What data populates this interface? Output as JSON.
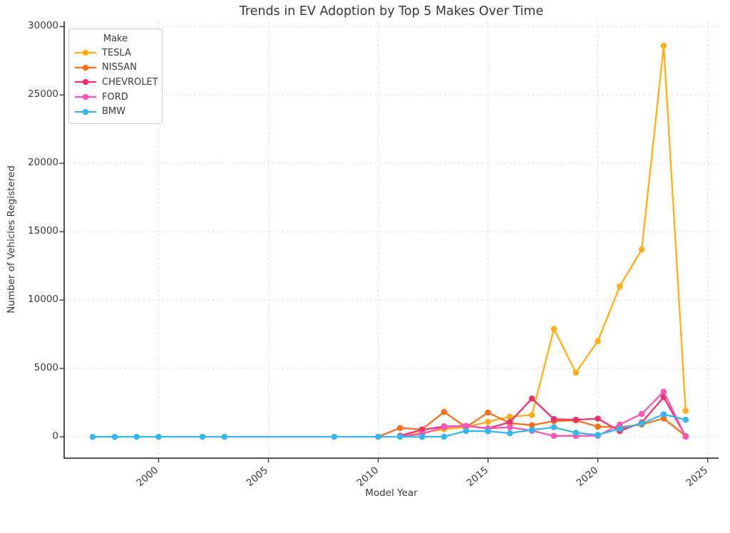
{
  "chart_data": {
    "type": "line",
    "title": "Trends in EV Adoption by Top 5 Makes Over Time",
    "xlabel": "Model Year",
    "ylabel": "Number of Vehicles Registered",
    "legend_title": "Make",
    "legend_position": "upper-left",
    "grid": true,
    "xlim": [
      1995.7,
      2025.5
    ],
    "ylim": [
      -1560,
      30380
    ],
    "xticks": [
      2000,
      2005,
      2010,
      2015,
      2020,
      2025
    ],
    "yticks": [
      0,
      5000,
      10000,
      15000,
      20000,
      25000,
      30000
    ],
    "series": [
      {
        "name": "TESLA",
        "color": "#FFAE1C",
        "points": [
          [
            2011,
            30
          ],
          [
            2012,
            300
          ],
          [
            2013,
            550
          ],
          [
            2014,
            700
          ],
          [
            2015,
            1100
          ],
          [
            2016,
            1480
          ],
          [
            2017,
            1600
          ],
          [
            2018,
            7900
          ],
          [
            2019,
            4700
          ],
          [
            2020,
            7000
          ],
          [
            2021,
            11000
          ],
          [
            2022,
            13700
          ],
          [
            2023,
            28600
          ],
          [
            2024,
            1900
          ]
        ]
      },
      {
        "name": "NISSAN",
        "color": "#F2701E",
        "points": [
          [
            2010,
            10
          ],
          [
            2011,
            650
          ],
          [
            2012,
            550
          ],
          [
            2013,
            1820
          ],
          [
            2014,
            700
          ],
          [
            2015,
            1780
          ],
          [
            2016,
            1000
          ],
          [
            2017,
            850
          ],
          [
            2018,
            1150
          ],
          [
            2019,
            1200
          ],
          [
            2020,
            750
          ],
          [
            2021,
            700
          ],
          [
            2022,
            900
          ],
          [
            2023,
            1350
          ],
          [
            2024,
            60
          ]
        ]
      },
      {
        "name": "CHEVROLET",
        "color": "#E8336B",
        "points": [
          [
            2011,
            80
          ],
          [
            2012,
            520
          ],
          [
            2013,
            760
          ],
          [
            2014,
            800
          ],
          [
            2015,
            620
          ],
          [
            2016,
            1080
          ],
          [
            2017,
            2800
          ],
          [
            2018,
            1300
          ],
          [
            2019,
            1250
          ],
          [
            2020,
            1330
          ],
          [
            2021,
            420
          ],
          [
            2022,
            1050
          ],
          [
            2023,
            2900
          ],
          [
            2024,
            40
          ]
        ]
      },
      {
        "name": "FORD",
        "color": "#F159B4",
        "points": [
          [
            2011,
            30
          ],
          [
            2012,
            220
          ],
          [
            2013,
            710
          ],
          [
            2014,
            800
          ],
          [
            2015,
            620
          ],
          [
            2016,
            700
          ],
          [
            2017,
            450
          ],
          [
            2018,
            70
          ],
          [
            2019,
            70
          ],
          [
            2020,
            80
          ],
          [
            2021,
            900
          ],
          [
            2022,
            1680
          ],
          [
            2023,
            3300
          ],
          [
            2024,
            20
          ]
        ]
      },
      {
        "name": "BMW",
        "color": "#38B5EC",
        "points": [
          [
            1997,
            2
          ],
          [
            1998,
            2
          ],
          [
            1999,
            2
          ],
          [
            2000,
            2
          ],
          [
            2002,
            2
          ],
          [
            2003,
            2
          ],
          [
            2008,
            2
          ],
          [
            2010,
            2
          ],
          [
            2011,
            5
          ],
          [
            2012,
            10
          ],
          [
            2013,
            15
          ],
          [
            2014,
            430
          ],
          [
            2015,
            410
          ],
          [
            2016,
            270
          ],
          [
            2017,
            510
          ],
          [
            2018,
            700
          ],
          [
            2019,
            300
          ],
          [
            2020,
            140
          ],
          [
            2021,
            590
          ],
          [
            2022,
            980
          ],
          [
            2023,
            1650
          ],
          [
            2024,
            1250
          ]
        ]
      }
    ]
  }
}
